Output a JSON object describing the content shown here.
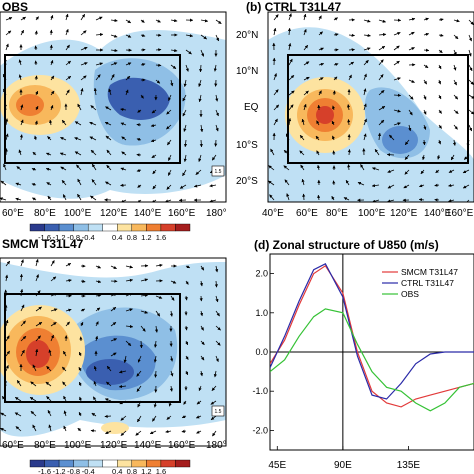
{
  "panels": {
    "a": {
      "title": "OBS"
    },
    "b": {
      "title": "(b) CTRL T31L47"
    },
    "c": {
      "title": "SMCM T31L47"
    },
    "d": {
      "title": "(d) Zonal structure of U850 (m/s)"
    }
  },
  "map_axes": {
    "lon_ticks_a": [
      "60°E",
      "80°E",
      "100°E",
      "120°E",
      "140°E",
      "160°E",
      "180°"
    ],
    "lon_ticks_b": [
      "40°E",
      "60°E",
      "80°E",
      "100°E",
      "120°E",
      "140°E",
      "160°E"
    ],
    "lat_ticks": [
      "20°N",
      "10°N",
      "EQ",
      "10°S",
      "20°S"
    ]
  },
  "colorbar": {
    "labels": [
      "-1.6",
      "-1.2",
      "-0.8",
      "-0.4",
      "0.4",
      "0.8",
      "1.2",
      "1.6"
    ],
    "colors": [
      "#2a3a8c",
      "#3a5fb0",
      "#5b8fd0",
      "#8fbfe6",
      "#bfe0f4",
      "#ffffff",
      "#fde3a0",
      "#f8b85c",
      "#ef7f32",
      "#d6402a",
      "#a51d1d"
    ]
  },
  "scale_arrow_label": "1.5",
  "chart_data": {
    "type": "line",
    "title": "(d) Zonal structure of U850 (m/s)",
    "x_tick_labels": [
      "45E",
      "90E",
      "135E"
    ],
    "xlim": [
      40,
      180
    ],
    "ylim": [
      -2.5,
      2.5
    ],
    "y_ticks": [
      -2.0,
      -1.0,
      0.0,
      1.0,
      2.0
    ],
    "y_tick_labels": [
      "-2.0",
      "-1.0",
      "0.0",
      "1.0",
      "2.0"
    ],
    "vline_x": 90,
    "legend_position": "top-right",
    "x": [
      40,
      50,
      60,
      70,
      78,
      90,
      100,
      110,
      120,
      130,
      140,
      150,
      160,
      170,
      180
    ],
    "series": [
      {
        "name": "SMCM T31L47",
        "color": "#e23a3a",
        "values": [
          -0.3,
          0.3,
          1.2,
          2.0,
          2.2,
          1.5,
          0.0,
          -1.0,
          -1.3,
          -1.4,
          -1.2,
          -1.1,
          -1.0,
          -0.9,
          -0.8
        ]
      },
      {
        "name": "CTRL T31L47",
        "color": "#2a2aa8",
        "values": [
          -0.4,
          0.4,
          1.3,
          2.1,
          2.25,
          1.4,
          -0.1,
          -1.1,
          -1.2,
          -0.8,
          -0.3,
          -0.05,
          0.0,
          0.0,
          0.0
        ]
      },
      {
        "name": "OBS",
        "color": "#36c236",
        "values": [
          -0.5,
          -0.2,
          0.4,
          0.9,
          1.1,
          1.0,
          0.2,
          -0.5,
          -0.9,
          -1.0,
          -1.3,
          -1.5,
          -1.3,
          -0.9,
          -0.8
        ]
      }
    ]
  }
}
